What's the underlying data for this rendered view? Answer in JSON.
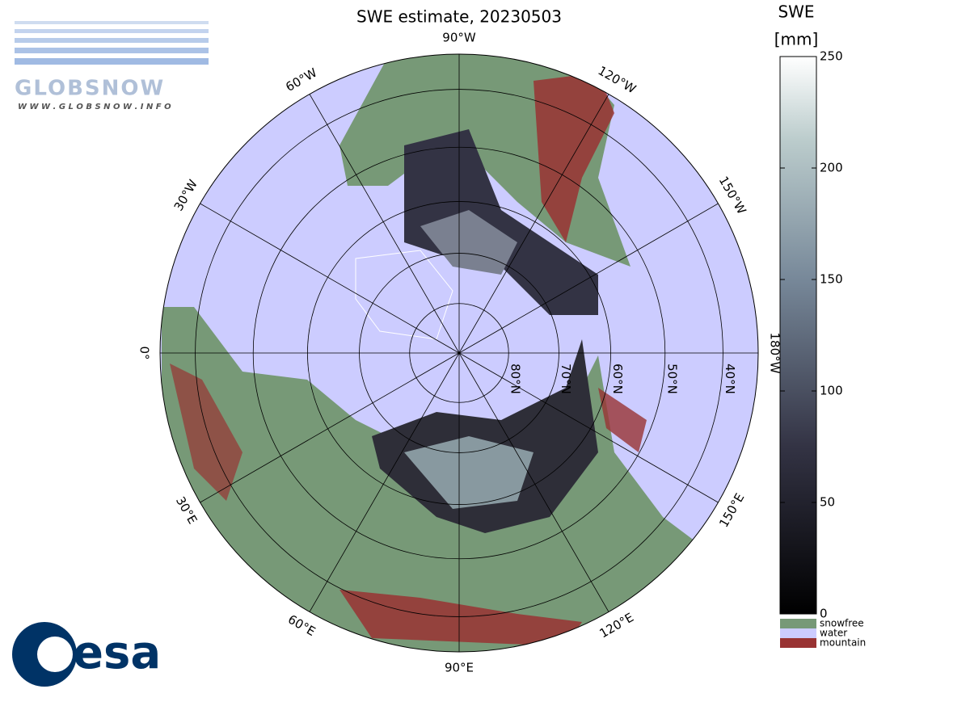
{
  "title": "SWE estimate, 20230503",
  "logos": {
    "globsnow": "GLOBSNOW",
    "url": "W W W . G L O B S N O W . I N F O",
    "esa": "esa"
  },
  "map": {
    "longitudes": [
      {
        "value": -90,
        "label": "90°W"
      },
      {
        "value": -120,
        "label": "120°W"
      },
      {
        "value": -150,
        "label": "150°W"
      },
      {
        "value": 180,
        "label": "180°W"
      },
      {
        "value": 150,
        "label": "150°E"
      },
      {
        "value": 120,
        "label": "120°E"
      },
      {
        "value": 90,
        "label": "90°E"
      },
      {
        "value": 60,
        "label": "60°E"
      },
      {
        "value": 30,
        "label": "30°E"
      },
      {
        "value": 0,
        "label": "0°"
      },
      {
        "value": -30,
        "label": "30°W"
      },
      {
        "value": -60,
        "label": "60°W"
      }
    ],
    "latitudes": [
      {
        "value": 80,
        "label": "80°N"
      },
      {
        "value": 70,
        "label": "70°N"
      },
      {
        "value": 60,
        "label": "60°N"
      },
      {
        "value": 50,
        "label": "50°N"
      },
      {
        "value": 40,
        "label": "40°N"
      }
    ]
  },
  "colorbar": {
    "title": "SWE",
    "unit": "[mm]",
    "lim": [
      0,
      250
    ],
    "ticks": [
      0,
      50,
      100,
      150,
      200,
      250
    ]
  },
  "legend": [
    {
      "name": "snowfree",
      "color": "#779977"
    },
    {
      "name": "water",
      "color": "#ccccff"
    },
    {
      "name": "mountain",
      "color": "#993333"
    }
  ]
}
